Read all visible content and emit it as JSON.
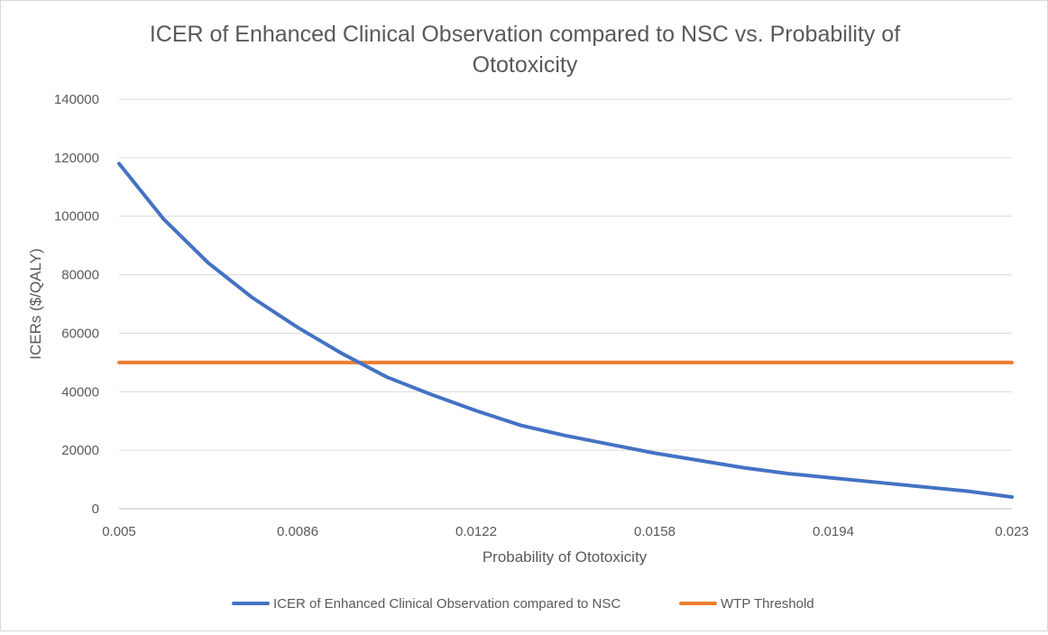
{
  "chart_data": {
    "type": "line",
    "title_lines": [
      "ICER of Enhanced Clinical Observation compared to NSC vs. Probability of",
      "Ototoxicity"
    ],
    "xlabel": "Probability of Ototoxicity",
    "ylabel": "ICERs ($/QALY)",
    "xlim": [
      0.005,
      0.023
    ],
    "ylim": [
      0,
      140000
    ],
    "x_ticks": [
      0.005,
      0.0086,
      0.0122,
      0.0158,
      0.0194,
      0.023
    ],
    "x_tick_labels": [
      "0.005",
      "0.0086",
      "0.0122",
      "0.0158",
      "0.0194",
      "0.023"
    ],
    "y_ticks": [
      0,
      20000,
      40000,
      60000,
      80000,
      100000,
      120000,
      140000
    ],
    "y_tick_labels": [
      "0",
      "20000",
      "40000",
      "60000",
      "80000",
      "100000",
      "120000",
      "140000"
    ],
    "grid": "horizontal",
    "legend_position": "bottom",
    "series": [
      {
        "name": "ICER of Enhanced Clinical Observation compared to NSC",
        "color": "#4472C4",
        "x": [
          0.005,
          0.0059,
          0.0068,
          0.0077,
          0.0086,
          0.0095,
          0.0104,
          0.0113,
          0.0122,
          0.0131,
          0.014,
          0.0149,
          0.0158,
          0.0167,
          0.0176,
          0.0185,
          0.0194,
          0.0203,
          0.0212,
          0.0221,
          0.023
        ],
        "y": [
          118000,
          99000,
          84000,
          72000,
          62000,
          53000,
          45000,
          39000,
          33500,
          28500,
          25000,
          22000,
          19000,
          16500,
          14000,
          12000,
          10500,
          9000,
          7500,
          6000,
          4000
        ]
      },
      {
        "name": "WTP Threshold",
        "color": "#ED7D31",
        "x": [
          0.005,
          0.023
        ],
        "y": [
          50000,
          50000
        ]
      }
    ]
  }
}
